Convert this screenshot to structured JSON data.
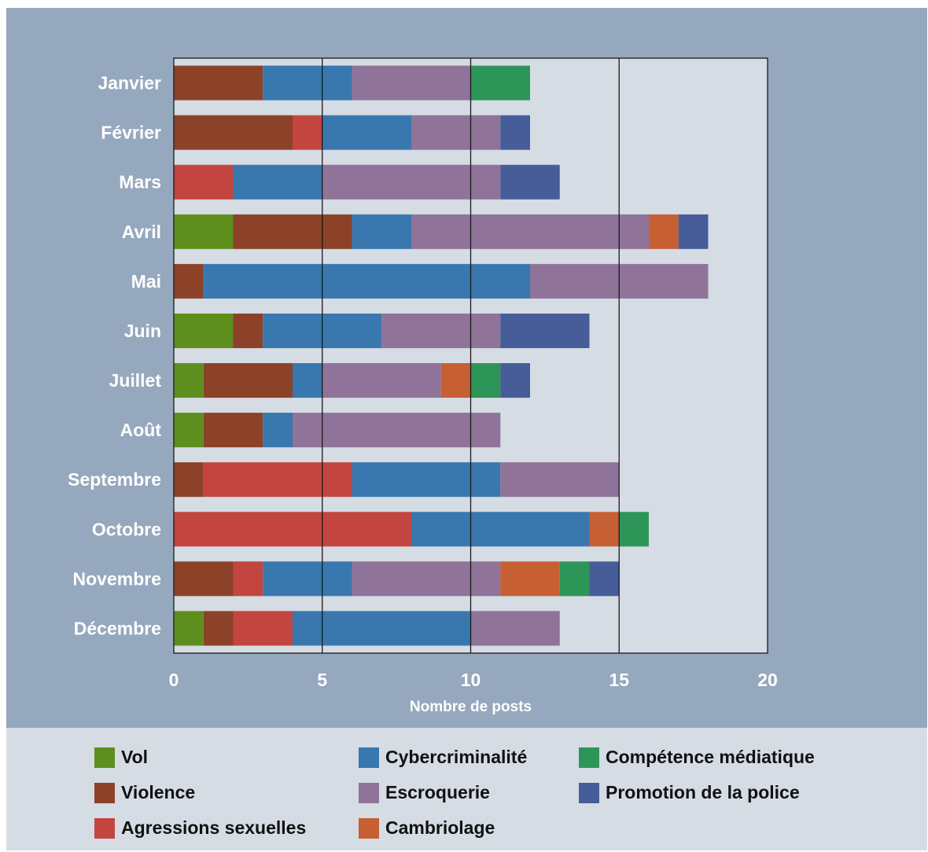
{
  "chart_data": {
    "type": "bar",
    "orientation": "horizontal",
    "stacked": true,
    "title": "",
    "xlabel": "Nombre de posts",
    "ylabel": "",
    "xlim": [
      0,
      20
    ],
    "xticks": [
      "0",
      "5",
      "10",
      "15",
      "20"
    ],
    "grid": "vertical lines at 5, 10, 15",
    "legend_position": "bottom",
    "categories": [
      "Janvier",
      "Février",
      "Mars",
      "Avril",
      "Mai",
      "Juin",
      "Juillet",
      "Août",
      "Septembre",
      "Octobre",
      "Novembre",
      "Décembre"
    ],
    "series": [
      {
        "name": "Vol",
        "color": "#5e8f1e",
        "values": [
          0,
          0,
          0,
          2,
          0,
          2,
          1,
          1,
          0,
          0,
          0,
          1
        ]
      },
      {
        "name": "Violence",
        "color": "#8c4229",
        "values": [
          3,
          4,
          0,
          4,
          1,
          1,
          3,
          2,
          1,
          0,
          2,
          1
        ]
      },
      {
        "name": "Agressions sexuelles",
        "color": "#c2463f",
        "values": [
          0,
          1,
          2,
          0,
          0,
          0,
          0,
          0,
          5,
          8,
          1,
          2
        ]
      },
      {
        "name": "Cybercriminalité",
        "color": "#3878ae",
        "values": [
          3,
          3,
          3,
          2,
          11,
          4,
          1,
          1,
          5,
          6,
          3,
          6
        ]
      },
      {
        "name": "Escroquerie",
        "color": "#8f7399",
        "values": [
          4,
          3,
          6,
          8,
          6,
          4,
          4,
          7,
          4,
          0,
          5,
          3
        ]
      },
      {
        "name": "Cambriolage",
        "color": "#c65f33",
        "values": [
          0,
          0,
          0,
          1,
          0,
          0,
          1,
          0,
          0,
          1,
          2,
          0
        ]
      },
      {
        "name": "Compétence médiatique",
        "color": "#2e9558",
        "values": [
          2,
          0,
          0,
          0,
          0,
          0,
          1,
          0,
          0,
          1,
          1,
          0
        ]
      },
      {
        "name": "Promotion de la police",
        "color": "#465d9a",
        "values": [
          0,
          1,
          2,
          1,
          0,
          3,
          1,
          0,
          0,
          0,
          1,
          0
        ]
      }
    ]
  },
  "colors": {
    "chart_background": "#95a8bd",
    "plot_background": "#d5dce4",
    "legend_background": "#d5dce4",
    "text": "#ffffff"
  },
  "legend": {
    "items": [
      {
        "label": "Vol",
        "color": "#5e8f1e"
      },
      {
        "label": "Violence",
        "color": "#8c4229"
      },
      {
        "label": "Agressions sexuelles",
        "color": "#c2463f"
      },
      {
        "label": "Cybercriminalité",
        "color": "#3878ae"
      },
      {
        "label": "Escroquerie",
        "color": "#8f7399"
      },
      {
        "label": "Cambriolage",
        "color": "#c65f33"
      },
      {
        "label": "Compétence médiatique",
        "color": "#2e9558"
      },
      {
        "label": "Promotion de la police",
        "color": "#465d9a"
      }
    ]
  }
}
